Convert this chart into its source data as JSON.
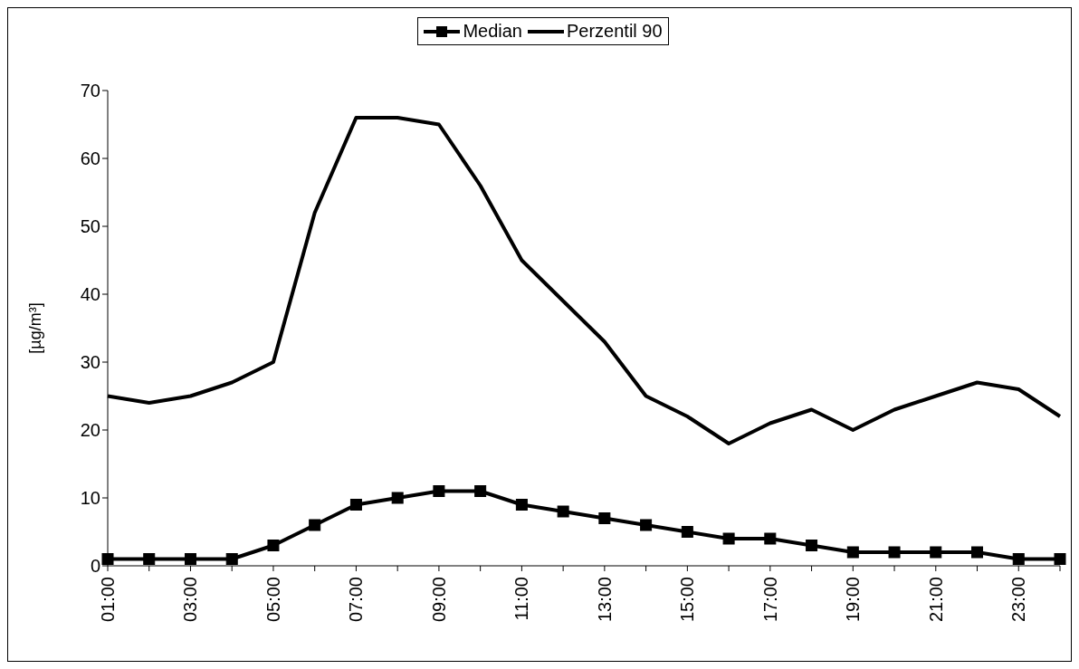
{
  "chart_data": {
    "type": "line",
    "ylabel": "[µg/m³]",
    "categories": [
      "01:00",
      null,
      "03:00",
      null,
      "05:00",
      null,
      "07:00",
      null,
      "09:00",
      null,
      "11:00",
      null,
      "13:00",
      null,
      "15:00",
      null,
      "17:00",
      null,
      "19:00",
      null,
      "21:00",
      null,
      "23:00",
      null
    ],
    "series": [
      {
        "name": "Median",
        "color": "#000000",
        "marker": "square",
        "values": [
          1,
          1,
          1,
          1,
          3,
          6,
          9,
          10,
          11,
          11,
          9,
          8,
          7,
          6,
          5,
          4,
          4,
          3,
          2,
          2,
          2,
          2,
          1,
          1
        ]
      },
      {
        "name": "Perzentil 90",
        "color": "#000000",
        "marker": "none",
        "values": [
          25,
          24,
          25,
          27,
          30,
          52,
          66,
          66,
          65,
          56,
          45,
          39,
          33,
          25,
          22,
          18,
          21,
          23,
          20,
          23,
          25,
          27,
          26,
          22
        ]
      }
    ],
    "ylim": [
      0,
      70
    ],
    "yticks": [
      0,
      10,
      20,
      30,
      40,
      50,
      60,
      70
    ],
    "legend": "top",
    "line_style": "solid"
  }
}
